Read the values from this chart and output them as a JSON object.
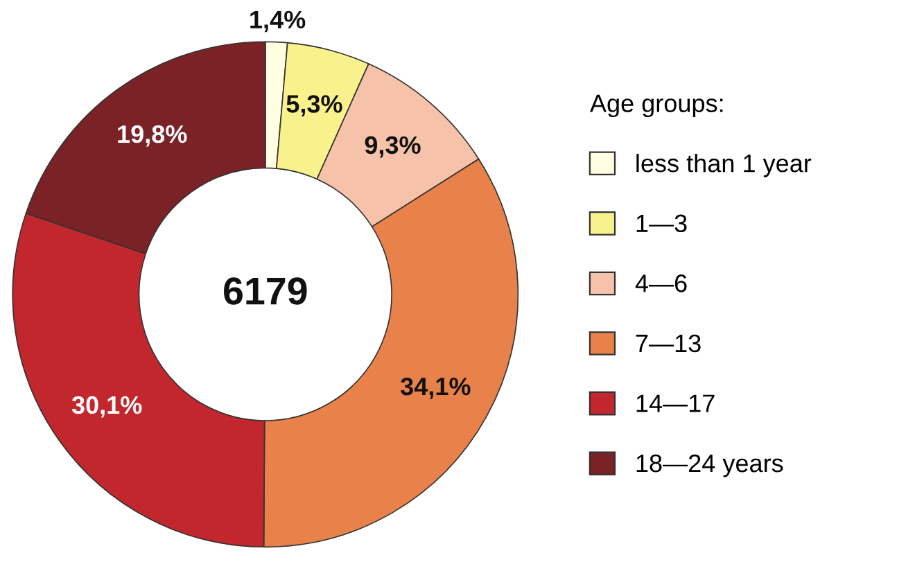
{
  "chart_data": {
    "type": "donut",
    "legend_title": "Age groups:",
    "legend": "right",
    "categories": [
      "less than 1 year",
      "1—3",
      "4—6",
      "7—13",
      "14—17",
      "18—24 years"
    ],
    "values": [
      1.4,
      5.3,
      9.3,
      34.1,
      30.1,
      19.8
    ],
    "colors": [
      "#fffde2",
      "#f9f28c",
      "#f6c2aa",
      "#e8824a",
      "#c1272d",
      "#7b2226"
    ],
    "value_labels": [
      "1,4%",
      "5,3%",
      "9,3%",
      "34,1%",
      "30,1%",
      "19,8%"
    ],
    "annotations": [
      "6179"
    ]
  }
}
